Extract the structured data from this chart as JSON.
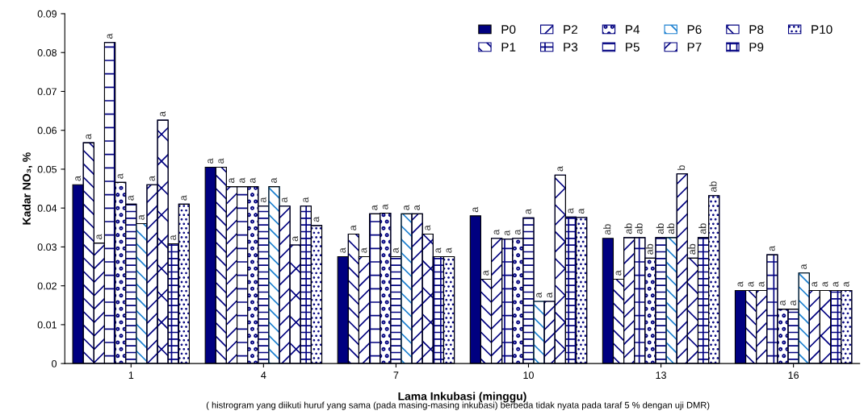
{
  "chart_data": {
    "type": "bar",
    "xlabel": "Lama Inkubasi (minggu)",
    "ylabel": "Kadar NO₃, %",
    "categories": [
      "1",
      "4",
      "7",
      "10",
      "13",
      "16"
    ],
    "ylim": [
      0,
      0.09
    ],
    "yticks": [
      0,
      0.01,
      0.02,
      0.03,
      0.04,
      0.05,
      0.06,
      0.07,
      0.08,
      0.09
    ],
    "grid": false,
    "legend": "top right",
    "annotations": [
      "( histrogram yang diikuti huruf yang sama (pada masing-masing inkubasi) berbeda tidak nyata pada taraf 5 % dengan uji DMR)"
    ],
    "series": [
      {
        "name": "P0",
        "color": "#000080",
        "values": [
          0.046,
          0.0505,
          0.0275,
          0.038,
          0.0322,
          0.0188
        ],
        "value_labels": [
          "a",
          "a",
          "a",
          "a",
          "ab",
          "a"
        ]
      },
      {
        "name": "P1",
        "color": "#000080",
        "values": [
          0.0568,
          0.0505,
          0.0333,
          0.0217,
          0.0217,
          0.0188
        ],
        "value_labels": [
          "a",
          "a",
          "a",
          "a",
          "a",
          "a"
        ]
      },
      {
        "name": "P2",
        "color": "#000080",
        "values": [
          0.031,
          0.0455,
          0.0275,
          0.0322,
          0.0324,
          0.0188
        ],
        "value_labels": [
          "a",
          "a",
          "a",
          "a",
          "ab",
          "a"
        ]
      },
      {
        "name": "P3",
        "color": "#000080",
        "values": [
          0.0826,
          0.0455,
          0.0385,
          0.032,
          0.0324,
          0.028
        ],
        "value_labels": [
          "a",
          "a",
          "a",
          "a",
          "ab",
          "a"
        ]
      },
      {
        "name": "P4",
        "color": "#000080",
        "values": [
          0.0466,
          0.0455,
          0.0387,
          0.0322,
          0.0271,
          0.014
        ],
        "value_labels": [
          "a",
          "a",
          "a",
          "a",
          "ab",
          "a"
        ]
      },
      {
        "name": "P5",
        "color": "#000080",
        "values": [
          0.041,
          0.0405,
          0.0275,
          0.0375,
          0.0324,
          0.014
        ],
        "value_labels": [
          "a",
          "a",
          "a",
          "a",
          "ab",
          "a"
        ]
      },
      {
        "name": "P6",
        "color": "#1a7fd0",
        "values": [
          0.036,
          0.0455,
          0.0385,
          0.016,
          0.0324,
          0.0233
        ],
        "value_labels": [
          "a",
          "a",
          "a",
          "a",
          "ab",
          "a"
        ]
      },
      {
        "name": "P7",
        "color": "#000080",
        "values": [
          0.046,
          0.0405,
          0.0385,
          0.016,
          0.0488,
          0.0188
        ],
        "value_labels": [
          "a",
          "a",
          "a",
          "a",
          "b",
          "a"
        ]
      },
      {
        "name": "P8",
        "color": "#000080",
        "values": [
          0.0626,
          0.0305,
          0.0333,
          0.0485,
          0.0271,
          0.0188
        ],
        "value_labels": [
          "a",
          "a",
          "a",
          "a",
          "ab",
          "a"
        ]
      },
      {
        "name": "P9",
        "color": "#000080",
        "values": [
          0.0308,
          0.0405,
          0.0275,
          0.0377,
          0.0324,
          0.0188
        ],
        "value_labels": [
          "a",
          "a",
          "a",
          "a",
          "ab",
          "a"
        ]
      },
      {
        "name": "P10",
        "color": "#000080",
        "values": [
          0.041,
          0.0355,
          0.0275,
          0.0376,
          0.0432,
          0.0188
        ],
        "value_labels": [
          "a",
          "a",
          "a",
          "a",
          "ab",
          "a"
        ]
      }
    ]
  }
}
